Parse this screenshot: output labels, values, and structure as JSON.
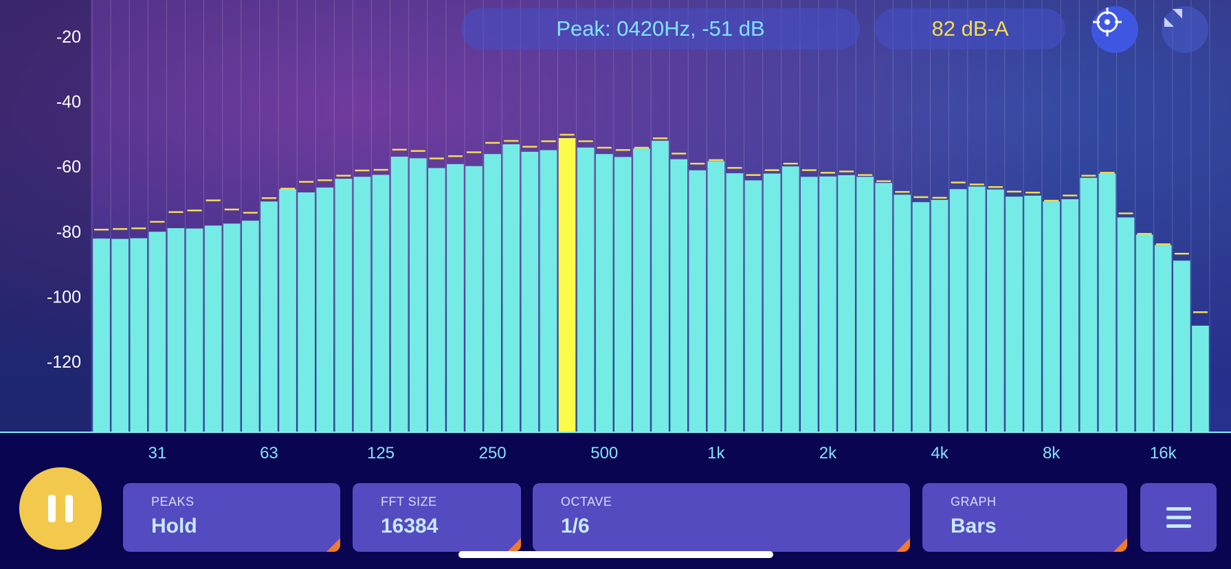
{
  "header": {
    "peak_text": "Peak: 0420Hz, -51 dB",
    "level_text": "82 dB-A"
  },
  "icons": {
    "target": "crosshair-icon",
    "expand": "expand-arrows-icon",
    "pause": "pause-icon",
    "menu": "hamburger-menu-icon"
  },
  "controls": {
    "peaks": {
      "label": "PEAKS",
      "value": "Hold"
    },
    "fft": {
      "label": "FFT SIZE",
      "value": "16384"
    },
    "octave": {
      "label": "OCTAVE",
      "value": "1/6"
    },
    "graph": {
      "label": "GRAPH",
      "value": "Bars"
    }
  },
  "colors": {
    "bar": "#74ece5",
    "highlight": "#fbfb4a",
    "peak_marker": "#f4dd50",
    "axis_text": "#ffffff",
    "freq_text": "#7fe3ff",
    "accent": "#3f57e0"
  },
  "chart_data": {
    "type": "bar",
    "y_ticks": [
      -20,
      -40,
      -60,
      -80,
      -100,
      -120
    ],
    "ylim": [
      -130,
      -10
    ],
    "x_ticks": [
      "31",
      "63",
      "125",
      "250",
      "500",
      "1k",
      "2k",
      "4k",
      "8k",
      "16k"
    ],
    "highlight_index": 25,
    "series": [
      {
        "values": [
          -82.4,
          -82.5,
          -82.3,
          -80.3,
          -79.2,
          -79.3,
          -78.4,
          -77.8,
          -76.9,
          -71.0,
          -67.2,
          -68.2,
          -66.7,
          -64.0,
          -63.4,
          -62.8,
          -57.2,
          -57.7,
          -60.7,
          -59.5,
          -60.1,
          -56.4,
          -53.4,
          -55.7,
          -55.2,
          -51.5,
          -54.4,
          -56.4,
          -57.3,
          -54.7,
          -52.3,
          -58.0,
          -61.4,
          -58.6,
          -62.3,
          -64.5,
          -62.4,
          -60.2,
          -63.4,
          -63.3,
          -62.9,
          -63.4,
          -65.3,
          -68.9,
          -71.2,
          -70.5,
          -67.2,
          -66.4,
          -67.3,
          -69.5,
          -69.2,
          -71.0,
          -70.3,
          -63.7,
          -62.4,
          -75.9,
          -81.2,
          -84.4,
          -89.2,
          -109.2
        ]
      },
      {
        "values": [
          -79.6,
          -79.4,
          -79.2,
          -77.2,
          -74.2,
          -73.7,
          -70.6,
          -73.4,
          -74.4,
          -69.9,
          -67.0,
          -64.9,
          -64.4,
          -63.0,
          -61.4,
          -61.2,
          -55.0,
          -55.4,
          -57.7,
          -57.0,
          -55.8,
          -52.9,
          -52.3,
          -54.1,
          -52.4,
          -50.4,
          -52.4,
          -54.4,
          -55.1,
          -54.4,
          -51.5,
          -56.2,
          -59.3,
          -58.2,
          -60.6,
          -62.8,
          -61.3,
          -59.3,
          -61.3,
          -62.1,
          -61.7,
          -62.8,
          -64.7,
          -68.0,
          -69.6,
          -69.8,
          -65.1,
          -65.7,
          -66.5,
          -67.9,
          -68.2,
          -70.7,
          -69.1,
          -63.0,
          -62.1,
          -74.6,
          -80.9,
          -84.1,
          -87.0,
          -105.0
        ]
      }
    ]
  }
}
